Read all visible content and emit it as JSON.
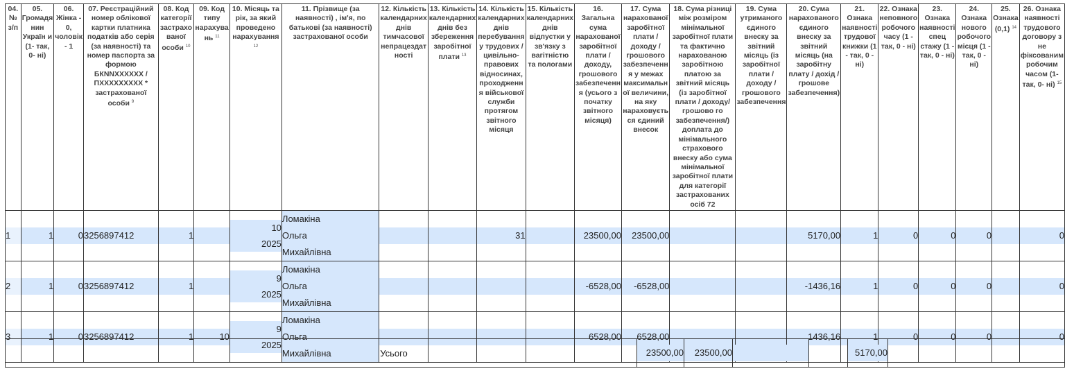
{
  "headers": [
    "04. № з/п",
    "05. Громадя нин Україн и (1- так, 0- ні)",
    "06. Жінка - 0, чоловік - 1",
    "07. Реєстраційний номер облікової картки платника податків або серія (за наявності) та номер паспорта за формою БКNNXXXXXX / ПXXXXXXXXX * застрахованої особи",
    "08. Код категорії застрахо ваної особи",
    "09. Код типу нарахува нь",
    "10. Місяць та рік, за який проведено нарахування",
    "11. Прізвище (за наявності) , ім'я, по батькові (за наявності) застрахованої особи",
    "12. Кількість календарних днів тимчасової непрацездат ності",
    "13. Кількість календарних днів без збереження заробітної плати",
    "14. Кількість календарних днів перебування у трудових / цивільно- правових відносинах, проходженн я військової служби протягом звітного місяця",
    "15. Кількість календарних днів відпустки у зв'язку з вагітністю та пологами",
    "16. Загальна сума нарахованої заробітної плати / доходу, грошового забезпеченн я (усього з початку звітного місяця)",
    "17. Сума нарахованої заробітної плати / доходу / грошового забезпеченн я у межах максимальн ої величини, на яку нараховуєть ся єдиний внесок",
    "18. Сума різниці між розміром мінімальної заробітної плати та фактично нарахованою заробітною платою за звітний місяць (із заробітної плати / доходу/грошово го забезпечення/) доплата до мінімального страхового внеску або сума мінімальної заробітної плати для категорії застрахованих осіб 72",
    "19. Сума утриманого єдиного внеску за звітний місяць (із заробітної плати / доходу / грошового забезпечення",
    "20. Сума нарахованого єдиного внеску за звітний місяць (на заробітну плату / дохід / грошове забезпечення)",
    "21. Ознака наявності трудової книжки (1 - так, 0 - ні)",
    "22. Ознака неповного робочого часу (1 - так, 0 - ні)",
    "23. Ознака наявності спец стажу (1 - так, 0 - ні)",
    "24. Ознака нового робочого місця (1 - так, 0 - ні)",
    "25. Ознака (0,1)",
    "26. Ознака наявності трудового договору з не фіксованим робочим часом (1- так, 0- ні)"
  ],
  "footnotes": {
    "c07": "9",
    "c08": "10",
    "c09": "11",
    "c10": "12",
    "c13": "13",
    "c25": "14",
    "c26": "15"
  },
  "rows": [
    {
      "n": "1",
      "c05": "1",
      "c06": "0",
      "c07": "3256897412",
      "c08": "1",
      "c09": "",
      "month": "10",
      "year": "2025",
      "name": [
        "Ломакіна",
        "Ольга",
        "Михайлівна"
      ],
      "c12": "",
      "c13": "",
      "c14": "31",
      "c15": "",
      "c16": "23500,00",
      "c17": "23500,00",
      "c18": "",
      "c19": "",
      "c20": "5170,00",
      "c21": "1",
      "c22": "0",
      "c23": "0",
      "c24": "0",
      "c25": "",
      "c26": "0"
    },
    {
      "n": "2",
      "c05": "1",
      "c06": "0",
      "c07": "3256897412",
      "c08": "1",
      "c09": "",
      "month": "9",
      "year": "2025",
      "name": [
        "Ломакіна",
        "Ольга",
        "Михайлівна"
      ],
      "c12": "",
      "c13": "",
      "c14": "",
      "c15": "",
      "c16": "-6528,00",
      "c17": "-6528,00",
      "c18": "",
      "c19": "",
      "c20": "-1436,16",
      "c21": "1",
      "c22": "0",
      "c23": "0",
      "c24": "0",
      "c25": "",
      "c26": "0"
    },
    {
      "n": "3",
      "c05": "1",
      "c06": "0",
      "c07": "3256897412",
      "c08": "1",
      "c09": "10",
      "month": "9",
      "year": "2025",
      "name": [
        "Ломакіна",
        "Ольга",
        "Михайлівна"
      ],
      "c12": "",
      "c13": "",
      "c14": "",
      "c15": "",
      "c16": "6528,00",
      "c17": "6528,00",
      "c18": "",
      "c19": "",
      "c20": "1436,16",
      "c21": "1",
      "c22": "0",
      "c23": "0",
      "c24": "0",
      "c25": "",
      "c26": "0"
    }
  ],
  "totals": {
    "label": "Усього",
    "c16": "23500,00",
    "c17": "23500,00",
    "c18": "",
    "c19": "",
    "c20": "5170,00"
  },
  "colors": {
    "highlight": "#d6e7fc",
    "border": "#333333"
  }
}
